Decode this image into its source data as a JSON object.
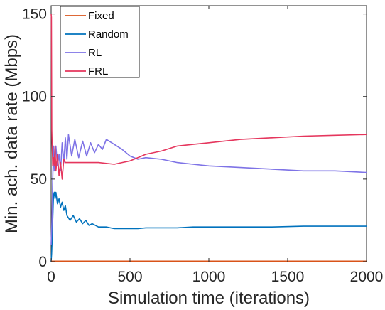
{
  "chart_data": {
    "type": "line",
    "title": "",
    "xlabel": "Simulation time (iterations)",
    "ylabel": "Min. ach. data rate (Mbps)",
    "xlim": [
      0,
      2000
    ],
    "ylim": [
      0,
      155
    ],
    "xticks": [
      0,
      500,
      1000,
      1500,
      2000
    ],
    "yticks": [
      0,
      50,
      100,
      150
    ],
    "xtick_labels": [
      "0",
      "500",
      "1000",
      "1500",
      "2000"
    ],
    "ytick_labels": [
      "0",
      "50",
      "100",
      "150"
    ],
    "grid": false,
    "legend_position": "top-left",
    "series": [
      {
        "name": "Fixed",
        "color": "#D95319",
        "x": [
          0,
          2000
        ],
        "y": [
          0.3,
          0.3
        ]
      },
      {
        "name": "Random",
        "color": "#0072BD",
        "x": [
          0,
          3,
          6,
          10,
          15,
          20,
          25,
          30,
          40,
          50,
          60,
          70,
          80,
          90,
          100,
          120,
          140,
          160,
          180,
          200,
          220,
          240,
          260,
          300,
          350,
          400,
          450,
          500,
          550,
          600,
          700,
          800,
          900,
          1000,
          1200,
          1400,
          1600,
          1800,
          2000
        ],
        "y": [
          0,
          5,
          12,
          25,
          40,
          42,
          38,
          42,
          35,
          38,
          33,
          36,
          31,
          34,
          28,
          25,
          28,
          24,
          26,
          23,
          25,
          22,
          23,
          21,
          21,
          20,
          20,
          20,
          20,
          20.5,
          20.5,
          20.5,
          21,
          21,
          21,
          21,
          21.5,
          21.5,
          21.5
        ]
      },
      {
        "name": "RL",
        "color": "#7E73E6",
        "x": [
          0,
          5,
          10,
          15,
          20,
          30,
          40,
          50,
          60,
          70,
          80,
          90,
          100,
          110,
          130,
          150,
          175,
          200,
          225,
          250,
          275,
          300,
          325,
          350,
          400,
          450,
          500,
          550,
          600,
          700,
          800,
          900,
          1000,
          1200,
          1400,
          1600,
          1800,
          2000
        ],
        "y": [
          10,
          25,
          50,
          70,
          55,
          70,
          58,
          65,
          55,
          72,
          60,
          75,
          62,
          77,
          64,
          74,
          63,
          73,
          64,
          72,
          66,
          71,
          68,
          74,
          71,
          68,
          64,
          62,
          63,
          62,
          60,
          59,
          58,
          57,
          56,
          55,
          55,
          54
        ]
      },
      {
        "name": "FRL",
        "color": "#E5365D",
        "x": [
          0,
          2,
          4,
          6,
          8,
          10,
          15,
          20,
          25,
          30,
          40,
          50,
          60,
          70,
          80,
          90,
          100,
          150,
          200,
          300,
          400,
          450,
          500,
          550,
          600,
          700,
          800,
          900,
          1000,
          1200,
          1400,
          1600,
          1800,
          2000
        ],
        "y": [
          150,
          148,
          80,
          72,
          65,
          58,
          63,
          58,
          70,
          55,
          65,
          52,
          60,
          50,
          62,
          60,
          60,
          60,
          60,
          60,
          59,
          60,
          61,
          63,
          65,
          67,
          70,
          71,
          72,
          74,
          75,
          76,
          76.5,
          77
        ]
      }
    ]
  }
}
